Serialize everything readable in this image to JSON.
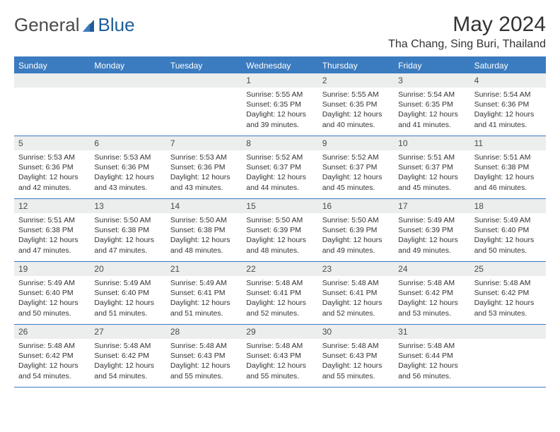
{
  "brand": {
    "word1": "General",
    "word2": "Blue"
  },
  "title": {
    "month": "May 2024",
    "location": "Tha Chang, Sing Buri, Thailand"
  },
  "colors": {
    "header_blue": "#3b7bbf",
    "day_bar_bg": "#eceded",
    "text": "#333333",
    "logo_gray": "#4a4a4a",
    "logo_blue": "#1f5d9a"
  },
  "weekdays": [
    "Sunday",
    "Monday",
    "Tuesday",
    "Wednesday",
    "Thursday",
    "Friday",
    "Saturday"
  ],
  "weeks": [
    [
      {
        "num": "",
        "sunrise": "",
        "sunset": "",
        "daylight": ""
      },
      {
        "num": "",
        "sunrise": "",
        "sunset": "",
        "daylight": ""
      },
      {
        "num": "",
        "sunrise": "",
        "sunset": "",
        "daylight": ""
      },
      {
        "num": "1",
        "sunrise": "Sunrise: 5:55 AM",
        "sunset": "Sunset: 6:35 PM",
        "daylight": "Daylight: 12 hours and 39 minutes."
      },
      {
        "num": "2",
        "sunrise": "Sunrise: 5:55 AM",
        "sunset": "Sunset: 6:35 PM",
        "daylight": "Daylight: 12 hours and 40 minutes."
      },
      {
        "num": "3",
        "sunrise": "Sunrise: 5:54 AM",
        "sunset": "Sunset: 6:35 PM",
        "daylight": "Daylight: 12 hours and 41 minutes."
      },
      {
        "num": "4",
        "sunrise": "Sunrise: 5:54 AM",
        "sunset": "Sunset: 6:36 PM",
        "daylight": "Daylight: 12 hours and 41 minutes."
      }
    ],
    [
      {
        "num": "5",
        "sunrise": "Sunrise: 5:53 AM",
        "sunset": "Sunset: 6:36 PM",
        "daylight": "Daylight: 12 hours and 42 minutes."
      },
      {
        "num": "6",
        "sunrise": "Sunrise: 5:53 AM",
        "sunset": "Sunset: 6:36 PM",
        "daylight": "Daylight: 12 hours and 43 minutes."
      },
      {
        "num": "7",
        "sunrise": "Sunrise: 5:53 AM",
        "sunset": "Sunset: 6:36 PM",
        "daylight": "Daylight: 12 hours and 43 minutes."
      },
      {
        "num": "8",
        "sunrise": "Sunrise: 5:52 AM",
        "sunset": "Sunset: 6:37 PM",
        "daylight": "Daylight: 12 hours and 44 minutes."
      },
      {
        "num": "9",
        "sunrise": "Sunrise: 5:52 AM",
        "sunset": "Sunset: 6:37 PM",
        "daylight": "Daylight: 12 hours and 45 minutes."
      },
      {
        "num": "10",
        "sunrise": "Sunrise: 5:51 AM",
        "sunset": "Sunset: 6:37 PM",
        "daylight": "Daylight: 12 hours and 45 minutes."
      },
      {
        "num": "11",
        "sunrise": "Sunrise: 5:51 AM",
        "sunset": "Sunset: 6:38 PM",
        "daylight": "Daylight: 12 hours and 46 minutes."
      }
    ],
    [
      {
        "num": "12",
        "sunrise": "Sunrise: 5:51 AM",
        "sunset": "Sunset: 6:38 PM",
        "daylight": "Daylight: 12 hours and 47 minutes."
      },
      {
        "num": "13",
        "sunrise": "Sunrise: 5:50 AM",
        "sunset": "Sunset: 6:38 PM",
        "daylight": "Daylight: 12 hours and 47 minutes."
      },
      {
        "num": "14",
        "sunrise": "Sunrise: 5:50 AM",
        "sunset": "Sunset: 6:38 PM",
        "daylight": "Daylight: 12 hours and 48 minutes."
      },
      {
        "num": "15",
        "sunrise": "Sunrise: 5:50 AM",
        "sunset": "Sunset: 6:39 PM",
        "daylight": "Daylight: 12 hours and 48 minutes."
      },
      {
        "num": "16",
        "sunrise": "Sunrise: 5:50 AM",
        "sunset": "Sunset: 6:39 PM",
        "daylight": "Daylight: 12 hours and 49 minutes."
      },
      {
        "num": "17",
        "sunrise": "Sunrise: 5:49 AM",
        "sunset": "Sunset: 6:39 PM",
        "daylight": "Daylight: 12 hours and 49 minutes."
      },
      {
        "num": "18",
        "sunrise": "Sunrise: 5:49 AM",
        "sunset": "Sunset: 6:40 PM",
        "daylight": "Daylight: 12 hours and 50 minutes."
      }
    ],
    [
      {
        "num": "19",
        "sunrise": "Sunrise: 5:49 AM",
        "sunset": "Sunset: 6:40 PM",
        "daylight": "Daylight: 12 hours and 50 minutes."
      },
      {
        "num": "20",
        "sunrise": "Sunrise: 5:49 AM",
        "sunset": "Sunset: 6:40 PM",
        "daylight": "Daylight: 12 hours and 51 minutes."
      },
      {
        "num": "21",
        "sunrise": "Sunrise: 5:49 AM",
        "sunset": "Sunset: 6:41 PM",
        "daylight": "Daylight: 12 hours and 51 minutes."
      },
      {
        "num": "22",
        "sunrise": "Sunrise: 5:48 AM",
        "sunset": "Sunset: 6:41 PM",
        "daylight": "Daylight: 12 hours and 52 minutes."
      },
      {
        "num": "23",
        "sunrise": "Sunrise: 5:48 AM",
        "sunset": "Sunset: 6:41 PM",
        "daylight": "Daylight: 12 hours and 52 minutes."
      },
      {
        "num": "24",
        "sunrise": "Sunrise: 5:48 AM",
        "sunset": "Sunset: 6:42 PM",
        "daylight": "Daylight: 12 hours and 53 minutes."
      },
      {
        "num": "25",
        "sunrise": "Sunrise: 5:48 AM",
        "sunset": "Sunset: 6:42 PM",
        "daylight": "Daylight: 12 hours and 53 minutes."
      }
    ],
    [
      {
        "num": "26",
        "sunrise": "Sunrise: 5:48 AM",
        "sunset": "Sunset: 6:42 PM",
        "daylight": "Daylight: 12 hours and 54 minutes."
      },
      {
        "num": "27",
        "sunrise": "Sunrise: 5:48 AM",
        "sunset": "Sunset: 6:42 PM",
        "daylight": "Daylight: 12 hours and 54 minutes."
      },
      {
        "num": "28",
        "sunrise": "Sunrise: 5:48 AM",
        "sunset": "Sunset: 6:43 PM",
        "daylight": "Daylight: 12 hours and 55 minutes."
      },
      {
        "num": "29",
        "sunrise": "Sunrise: 5:48 AM",
        "sunset": "Sunset: 6:43 PM",
        "daylight": "Daylight: 12 hours and 55 minutes."
      },
      {
        "num": "30",
        "sunrise": "Sunrise: 5:48 AM",
        "sunset": "Sunset: 6:43 PM",
        "daylight": "Daylight: 12 hours and 55 minutes."
      },
      {
        "num": "31",
        "sunrise": "Sunrise: 5:48 AM",
        "sunset": "Sunset: 6:44 PM",
        "daylight": "Daylight: 12 hours and 56 minutes."
      },
      {
        "num": "",
        "sunrise": "",
        "sunset": "",
        "daylight": ""
      }
    ]
  ]
}
